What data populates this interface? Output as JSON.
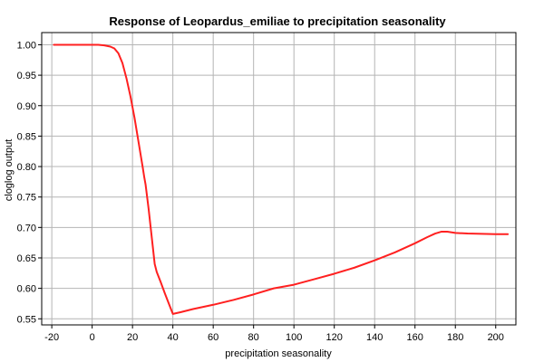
{
  "chart_data": {
    "type": "line",
    "title": "Response of Leopardus_emiliae to precipitation seasonality",
    "xlabel": "precipitation seasonality",
    "ylabel": "cloglog output",
    "xlim": [
      -25,
      210
    ],
    "ylim": [
      0.54,
      1.02
    ],
    "xticks": [
      -20,
      0,
      20,
      40,
      60,
      80,
      100,
      120,
      140,
      160,
      180,
      200
    ],
    "xtick_labels": [
      "-20",
      "0",
      "20",
      "40",
      "60",
      "80",
      "100",
      "120",
      "140",
      "160",
      "180",
      "200"
    ],
    "yticks": [
      0.55,
      0.6,
      0.65,
      0.7,
      0.75,
      0.8,
      0.85,
      0.9,
      0.95,
      1.0
    ],
    "ytick_labels": [
      "0.55",
      "0.60",
      "0.65",
      "0.70",
      "0.75",
      "0.80",
      "0.85",
      "0.90",
      "0.95",
      "1.00"
    ],
    "grid": true,
    "line_color": "#ff2020",
    "series": [
      {
        "x": [
          -19,
          -5,
          3,
          6,
          9,
          11,
          13,
          15,
          17,
          19,
          21,
          23,
          25,
          25.8,
          26.5,
          28,
          30,
          31,
          32,
          34,
          36,
          38,
          40,
          44,
          50,
          60,
          70,
          80,
          90,
          100,
          110,
          120,
          130,
          140,
          150,
          160,
          166,
          170,
          173,
          176,
          180,
          186,
          200,
          206
        ],
        "y": [
          1.0,
          1.0,
          1.0,
          0.999,
          0.997,
          0.994,
          0.986,
          0.97,
          0.945,
          0.915,
          0.88,
          0.84,
          0.8,
          0.783,
          0.77,
          0.73,
          0.67,
          0.64,
          0.627,
          0.61,
          0.592,
          0.575,
          0.558,
          0.561,
          0.566,
          0.573,
          0.581,
          0.59,
          0.6,
          0.606,
          0.615,
          0.624,
          0.634,
          0.646,
          0.659,
          0.674,
          0.684,
          0.69,
          0.693,
          0.693,
          0.691,
          0.69,
          0.689,
          0.689
        ]
      }
    ]
  }
}
